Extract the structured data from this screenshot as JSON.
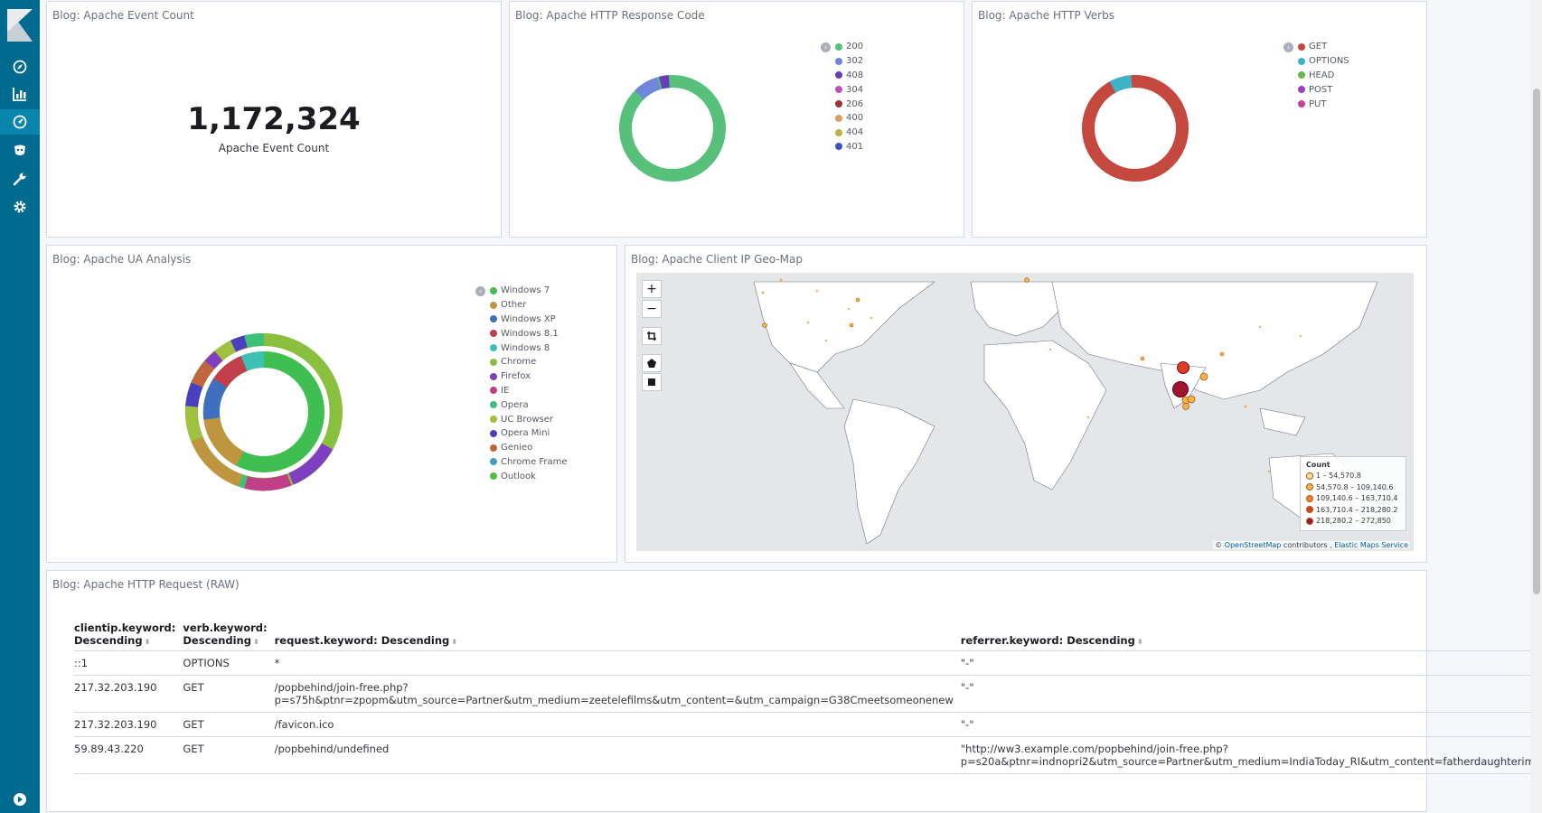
{
  "sidebar": {
    "icons": [
      "discover-icon",
      "visualize-icon",
      "dashboard-icon",
      "timelion-icon",
      "dev-tools-icon",
      "management-icon"
    ],
    "bottom_icon": "collapse-icon",
    "bg_color": "#006b8f"
  },
  "panels": {
    "event_count": {
      "title": "Blog: Apache Event Count",
      "value": "1,172,324",
      "label": "Apache Event Count"
    },
    "response_code": {
      "title": "Blog: Apache HTTP Response Code",
      "legend": [
        {
          "label": "200",
          "color": "#57c17b"
        },
        {
          "label": "302",
          "color": "#6f87d8"
        },
        {
          "label": "408",
          "color": "#663db8"
        },
        {
          "label": "304",
          "color": "#bc52bc"
        },
        {
          "label": "206",
          "color": "#9e3533"
        },
        {
          "label": "400",
          "color": "#daa05d"
        },
        {
          "label": "404",
          "color": "#bfaf40"
        },
        {
          "label": "401",
          "color": "#4050bf"
        }
      ]
    },
    "http_verbs": {
      "title": "Blog: Apache HTTP Verbs",
      "legend": [
        {
          "label": "GET",
          "color": "#c5483f"
        },
        {
          "label": "OPTIONS",
          "color": "#3db4c6"
        },
        {
          "label": "HEAD",
          "color": "#66b84b"
        },
        {
          "label": "POST",
          "color": "#9b3ec0"
        },
        {
          "label": "PUT",
          "color": "#c53f9b"
        }
      ]
    },
    "ua_analysis": {
      "title": "Blog: Apache UA Analysis",
      "legend": [
        {
          "label": "Windows 7",
          "color": "#3fbf4f"
        },
        {
          "label": "Other",
          "color": "#c0953f"
        },
        {
          "label": "Windows XP",
          "color": "#3f6fc0"
        },
        {
          "label": "Windows 8.1",
          "color": "#c03f4a"
        },
        {
          "label": "Windows 8",
          "color": "#3fc0b5"
        },
        {
          "label": "Chrome",
          "color": "#8bc03f"
        },
        {
          "label": "Firefox",
          "color": "#7f3fc0"
        },
        {
          "label": "IE",
          "color": "#c03f86"
        },
        {
          "label": "Opera",
          "color": "#3fc07a"
        },
        {
          "label": "UC Browser",
          "color": "#a0c03f"
        },
        {
          "label": "Opera Mini",
          "color": "#4a3fc0"
        },
        {
          "label": "Genieo",
          "color": "#c0663f"
        },
        {
          "label": "Chrome Frame",
          "color": "#3fa3c0"
        },
        {
          "label": "Outlook",
          "color": "#4fc03f"
        }
      ]
    },
    "geo_map": {
      "title": "Blog: Apache Client IP Geo-Map",
      "zoom_in": "+",
      "zoom_out": "−",
      "legend_title": "Count",
      "legend": [
        {
          "label": "1 – 54,570.8",
          "color": "#fbe29f"
        },
        {
          "label": "54,570.8 – 109,140.6",
          "color": "#f6b14a"
        },
        {
          "label": "109,140.6 – 163,710.4",
          "color": "#ee7c2b"
        },
        {
          "label": "163,710.4 – 218,280.2",
          "color": "#dc3d27"
        },
        {
          "label": "218,280.2 – 272,850",
          "color": "#a2132e"
        }
      ],
      "attribution_prefix": "©",
      "attribution_osm": "OpenStreetMap",
      "attribution_mid": "contributors ,",
      "attribution_ems": "Elastic Maps Service"
    },
    "http_request": {
      "title": "Blog: Apache HTTP Request (RAW)",
      "columns": [
        {
          "line1": "clientip.keyword:",
          "line2": "Descending"
        },
        {
          "line1": "verb.keyword:",
          "line2": "Descending"
        },
        {
          "line1": "",
          "line2": "request.keyword: Descending"
        },
        {
          "line1": "",
          "line2": "referrer.keyword: Descending"
        }
      ],
      "rows": [
        {
          "clientip": "::1",
          "verb": "OPTIONS",
          "request": "*",
          "referrer": "\"-\""
        },
        {
          "clientip": "217.32.203.190",
          "verb": "GET",
          "request": "/popbehind/join-free.php?\np=s75h&ptnr=zpopm&utm_source=Partner&utm_medium=zeetelefilms&utm_content=&utm_campaign=G38Cmeetsomeonenew",
          "referrer": "\"-\""
        },
        {
          "clientip": "217.32.203.190",
          "verb": "GET",
          "request": "/favicon.ico",
          "referrer": "\"-\""
        },
        {
          "clientip": "59.89.43.220",
          "verb": "GET",
          "request": "/popbehind/undefined",
          "referrer": "\"http://ww3.example.com/popbehind/join-free.php?\np=s20a&ptnr=indnopri2&utm_source=Partner&utm_medium=IndiaToday_RI&utm_content=fatherdaughterim"
        }
      ]
    }
  }
}
